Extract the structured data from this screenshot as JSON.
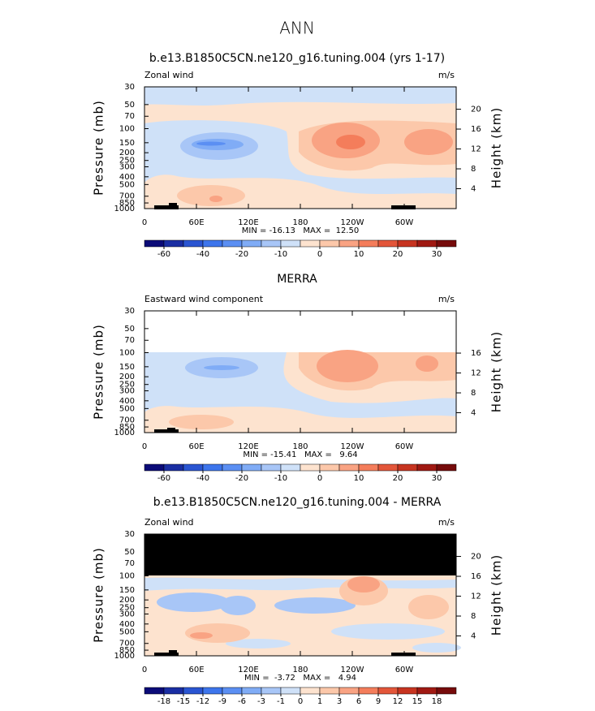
{
  "title": "ANN",
  "chart_data": [
    {
      "type": "contour",
      "title": "b.e13.B1850C5CN.ne120_g16.tuning.004 (yrs 1-17)",
      "subtitle": "Zonal wind",
      "units": "m/s",
      "ylabel": "Pressure (mb)",
      "y2label": "Height (km)",
      "log_y": true,
      "xlim": [
        0,
        360
      ],
      "xticks": [
        0,
        {
          "value": 60,
          "label": "60E"
        },
        {
          "value": 120,
          "label": "120E"
        },
        180,
        {
          "value": 240,
          "label": "120W"
        },
        {
          "value": 300,
          "label": "60W"
        }
      ],
      "ylim": [
        1000,
        30
      ],
      "yticks": [
        30,
        50,
        70,
        100,
        150,
        200,
        250,
        300,
        400,
        500,
        700,
        850,
        1000
      ],
      "y2lim": [
        0,
        24.5
      ],
      "y2ticks": [
        4,
        8,
        12,
        16,
        20
      ],
      "stats": "MIN = -16.13   MAX =  12.50",
      "colorbar": {
        "levels": [
          -60,
          null,
          -40,
          null,
          -20,
          null,
          -10,
          null,
          0,
          null,
          10,
          null,
          20,
          null,
          30
        ],
        "colors": [
          "#0b0b78",
          "#1a2ea3",
          "#2a55d2",
          "#3d75ec",
          "#5b8ff3",
          "#80acf6",
          "#a8c6f7",
          "#cfe1f8",
          "#fde3cf",
          "#fcc8aa",
          "#f9a383",
          "#f47d5b",
          "#e3563a",
          "#c73420",
          "#a01912",
          "#760b0b"
        ]
      }
    },
    {
      "type": "contour",
      "title": "MERRA",
      "subtitle": "Eastward wind component",
      "units": "m/s",
      "ylabel": "Pressure (mb)",
      "y2label": "Height (km)",
      "log_y": true,
      "xlim": [
        0,
        360
      ],
      "xticks": [
        0,
        {
          "value": 60,
          "label": "60E"
        },
        {
          "value": 120,
          "label": "120E"
        },
        180,
        {
          "value": 240,
          "label": "120W"
        },
        {
          "value": 300,
          "label": "60W"
        }
      ],
      "ylim": [
        1000,
        30
      ],
      "yticks": [
        30,
        50,
        70,
        100,
        150,
        200,
        250,
        300,
        400,
        500,
        700,
        850,
        1000
      ],
      "y2lim": [
        0,
        24.5
      ],
      "y2ticks": [
        4,
        8,
        12,
        16
      ],
      "stats": "MIN = -15.41   MAX =   9.64",
      "colorbar": {
        "levels": [
          -60,
          null,
          -40,
          null,
          -20,
          null,
          -10,
          null,
          0,
          null,
          10,
          null,
          20,
          null,
          30
        ],
        "colors": [
          "#0b0b78",
          "#1a2ea3",
          "#2a55d2",
          "#3d75ec",
          "#5b8ff3",
          "#80acf6",
          "#a8c6f7",
          "#cfe1f8",
          "#fde3cf",
          "#fcc8aa",
          "#f9a383",
          "#f47d5b",
          "#e3563a",
          "#c73420",
          "#a01912",
          "#760b0b"
        ]
      }
    },
    {
      "type": "contour",
      "title": "b.e13.B1850C5CN.ne120_g16.tuning.004 - MERRA",
      "subtitle": "Zonal wind",
      "units": "m/s",
      "ylabel": "Pressure (mb)",
      "y2label": "Height (km)",
      "log_y": true,
      "xlim": [
        0,
        360
      ],
      "xticks": [
        0,
        {
          "value": 60,
          "label": "60E"
        },
        {
          "value": 120,
          "label": "120E"
        },
        180,
        {
          "value": 240,
          "label": "120W"
        },
        {
          "value": 300,
          "label": "60W"
        }
      ],
      "ylim": [
        1000,
        30
      ],
      "yticks": [
        30,
        50,
        70,
        100,
        150,
        200,
        250,
        300,
        400,
        500,
        700,
        850,
        1000
      ],
      "y2lim": [
        0,
        24.5
      ],
      "y2ticks": [
        4,
        8,
        12,
        16,
        20
      ],
      "stats": "MIN =  -3.72   MAX =   4.94",
      "colorbar": {
        "levels": [
          -18,
          -15,
          -12,
          -9,
          -6,
          -3,
          -1,
          0,
          1,
          3,
          6,
          9,
          12,
          15,
          18
        ],
        "colors": [
          "#0b0b78",
          "#1a2ea3",
          "#2a55d2",
          "#3d75ec",
          "#5b8ff3",
          "#80acf6",
          "#a8c6f7",
          "#cfe1f8",
          "#fde3cf",
          "#fcc8aa",
          "#f9a383",
          "#f47d5b",
          "#e3563a",
          "#c73420",
          "#a01912",
          "#760b0b"
        ]
      }
    }
  ]
}
